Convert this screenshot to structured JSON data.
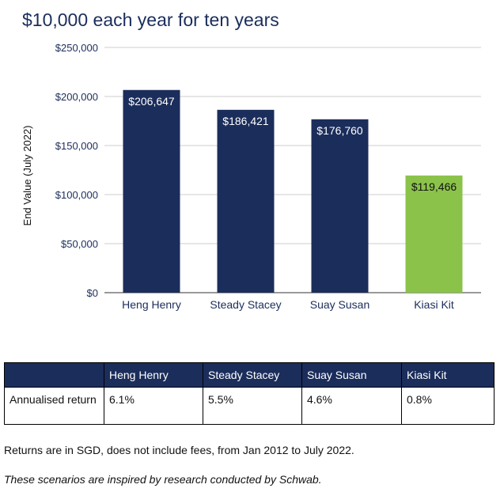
{
  "chart_data": {
    "type": "bar",
    "title": "$10,000 each year for ten years",
    "ylabel": "End Value (July 2022)",
    "xlabel": "",
    "categories": [
      "Heng Henry",
      "Steady Stacey",
      "Suay Susan",
      "Kiasi Kit"
    ],
    "values": [
      206647,
      186421,
      176760,
      119466
    ],
    "data_labels": [
      "$206,647",
      "$186,421",
      "$176,760",
      "$119,466"
    ],
    "bar_colors": [
      "#1b2d5b",
      "#1b2d5b",
      "#1b2d5b",
      "#8bc34a"
    ],
    "label_colors": [
      "#ffffff",
      "#ffffff",
      "#ffffff",
      "#111111"
    ],
    "ylim": [
      0,
      250000
    ],
    "yticks": [
      0,
      50000,
      100000,
      150000,
      200000,
      250000
    ],
    "ytick_labels": [
      "$0",
      "$50,000",
      "$100,000",
      "$150,000",
      "$200,000",
      "$250,000"
    ],
    "grid": true,
    "legend": "none"
  },
  "table": {
    "headers": [
      "",
      "Heng Henry",
      "Steady Stacey",
      "Suay Susan",
      "Kiasi Kit"
    ],
    "rows": [
      [
        "Annualised return",
        "6.1%",
        "5.5%",
        "4.6%",
        "0.8%"
      ]
    ]
  },
  "notes": {
    "sgd": "Returns are in SGD, does not include fees, from Jan 2012 to July 2022.",
    "schwab": "These scenarios are inspired by research conducted by Schwab."
  },
  "colors": {
    "navy": "#1b2d5b",
    "green": "#8bc34a",
    "grid": "#cccccc"
  }
}
